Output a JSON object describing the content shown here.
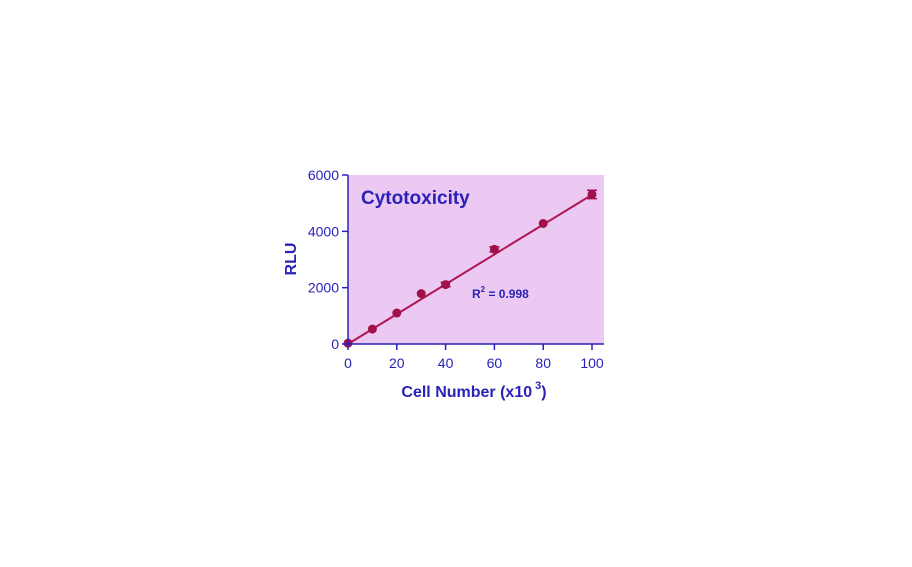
{
  "chart_data": {
    "type": "scatter",
    "title": "Cytotoxicity",
    "xlabel": "Cell Number (x10",
    "xlabel_sup": "3",
    "xlabel_close": ")",
    "ylabel": "RLU",
    "xlim": [
      0,
      100
    ],
    "ylim": [
      0,
      6000
    ],
    "xticks": [
      0,
      20,
      40,
      60,
      80,
      100
    ],
    "yticks": [
      0,
      2000,
      4000,
      6000
    ],
    "grid": false,
    "legend": "none",
    "annotation": {
      "prefix": "R",
      "sup": "2",
      "suffix": " = 0.998"
    },
    "series": [
      {
        "x": [
          0,
          10,
          20,
          30,
          40,
          60,
          80,
          100
        ],
        "y": [
          30,
          530,
          1100,
          1790,
          2110,
          3360,
          4280,
          5310
        ],
        "err": [
          0,
          0,
          0,
          0,
          80,
          90,
          0,
          150
        ]
      }
    ],
    "fit_line": {
      "x": [
        0,
        100
      ],
      "y": [
        0,
        5300
      ]
    },
    "colors": {
      "plot_bg": "#ecc9f3",
      "axis": "#2a22b8",
      "text": "#2a22b8",
      "marker": "#a0114c",
      "line": "#b01652"
    }
  }
}
